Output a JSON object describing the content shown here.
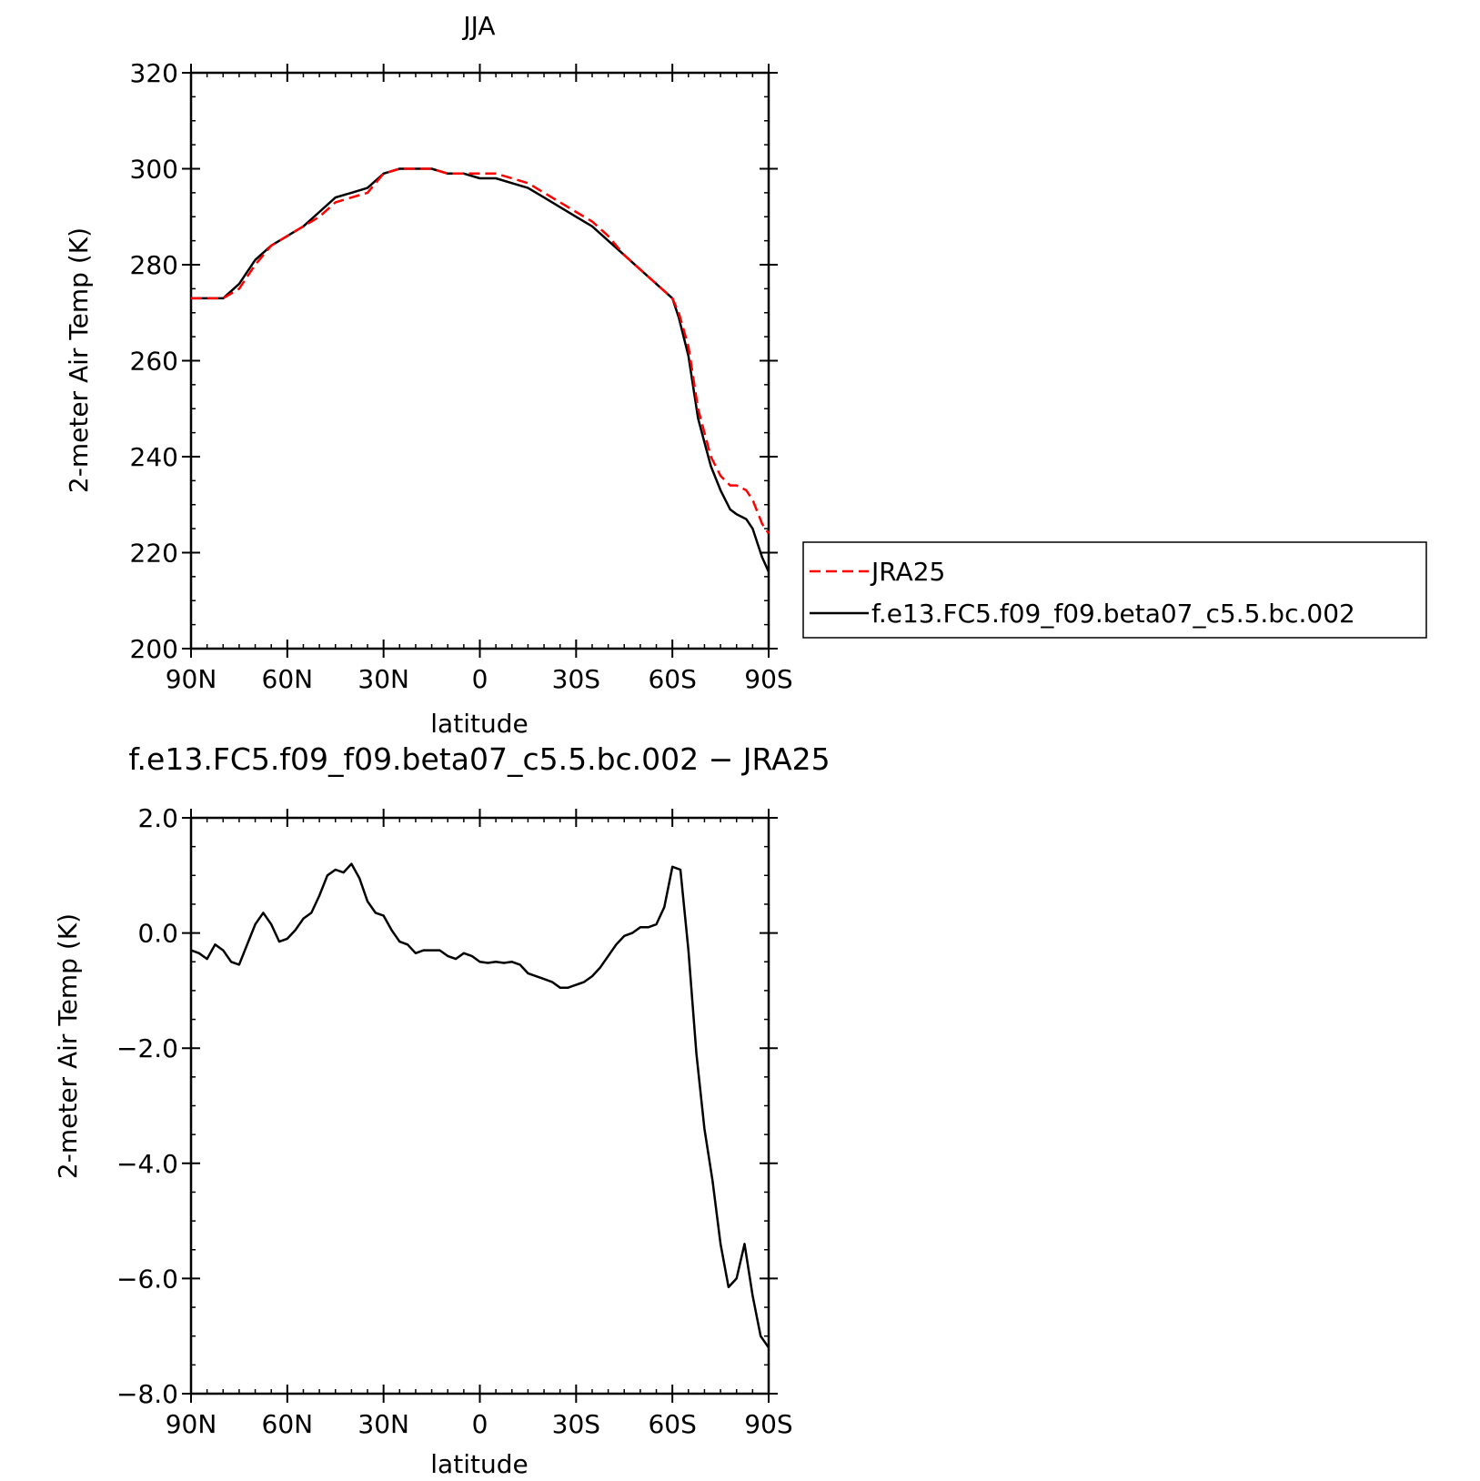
{
  "chart_data": [
    {
      "type": "line",
      "title": "JJA",
      "xlabel": "latitude",
      "ylabel": "2-meter Air Temp (K)",
      "xlim": [
        90,
        -90
      ],
      "ylim": [
        200,
        320
      ],
      "x_ticks": [
        {
          "value": 90,
          "label": "90N"
        },
        {
          "value": 60,
          "label": "60N"
        },
        {
          "value": 30,
          "label": "30N"
        },
        {
          "value": 0,
          "label": "0"
        },
        {
          "value": -30,
          "label": "30S"
        },
        {
          "value": -60,
          "label": "60S"
        },
        {
          "value": -90,
          "label": "90S"
        }
      ],
      "y_ticks": [
        {
          "value": 320,
          "label": "320"
        },
        {
          "value": 300,
          "label": "300"
        },
        {
          "value": 280,
          "label": "280"
        },
        {
          "value": 260,
          "label": "260"
        },
        {
          "value": 240,
          "label": "240"
        },
        {
          "value": 220,
          "label": "220"
        },
        {
          "value": 200,
          "label": "200"
        }
      ],
      "legend": "right",
      "series": [
        {
          "name": "JRA25",
          "color": "#ff0000",
          "style": "dashed",
          "x": [
            90,
            85,
            80,
            75,
            70,
            65,
            60,
            55,
            50,
            45,
            40,
            35,
            30,
            25,
            20,
            15,
            10,
            5,
            0,
            -5,
            -10,
            -15,
            -20,
            -25,
            -30,
            -35,
            -40,
            -45,
            -50,
            -55,
            -60,
            -62,
            -65,
            -68,
            -70,
            -72,
            -75,
            -78,
            -80,
            -83,
            -85,
            -88,
            -90
          ],
          "y": [
            273,
            273,
            273,
            275,
            280,
            284,
            286,
            288,
            290,
            293,
            294,
            295,
            299,
            300,
            300,
            300,
            299,
            299,
            299,
            299,
            298,
            297,
            295,
            293,
            291,
            289,
            286,
            282,
            279,
            276,
            273,
            270,
            263,
            250,
            245,
            240,
            236,
            234,
            234,
            233,
            231,
            226,
            224
          ]
        },
        {
          "name": "f.e13.FC5.f09_f09.beta07_c5.5.bc.002",
          "color": "#000000",
          "style": "solid",
          "x": [
            90,
            85,
            80,
            75,
            70,
            65,
            60,
            55,
            50,
            45,
            40,
            35,
            30,
            25,
            20,
            15,
            10,
            5,
            0,
            -5,
            -10,
            -15,
            -20,
            -25,
            -30,
            -35,
            -40,
            -45,
            -50,
            -55,
            -60,
            -62,
            -65,
            -68,
            -70,
            -72,
            -75,
            -78,
            -80,
            -83,
            -85,
            -88,
            -90
          ],
          "y": [
            273,
            273,
            273,
            276,
            281,
            284,
            286,
            288,
            291,
            294,
            295,
            296,
            299,
            300,
            300,
            300,
            299,
            299,
            298,
            298,
            297,
            296,
            294,
            292,
            290,
            288,
            285,
            282,
            279,
            276,
            273,
            269,
            261,
            248,
            243,
            238,
            233,
            229,
            228,
            227,
            225,
            219,
            216
          ]
        }
      ]
    },
    {
      "type": "line",
      "title": "f.e13.FC5.f09_f09.beta07_c5.5.bc.002 − JRA25",
      "xlabel": "latitude",
      "ylabel": "2-meter Air Temp (K)",
      "xlim": [
        90,
        -90
      ],
      "ylim": [
        -8,
        2
      ],
      "x_ticks": [
        {
          "value": 90,
          "label": "90N"
        },
        {
          "value": 60,
          "label": "60N"
        },
        {
          "value": 30,
          "label": "30N"
        },
        {
          "value": 0,
          "label": "0"
        },
        {
          "value": -30,
          "label": "30S"
        },
        {
          "value": -60,
          "label": "60S"
        },
        {
          "value": -90,
          "label": "90S"
        }
      ],
      "y_ticks": [
        {
          "value": 2,
          "label": "2.0"
        },
        {
          "value": 0,
          "label": "0.0"
        },
        {
          "value": -2,
          "label": "−2.0"
        },
        {
          "value": -4,
          "label": "−4.0"
        },
        {
          "value": -6,
          "label": "−6.0"
        },
        {
          "value": -8,
          "label": "−8.0"
        }
      ],
      "series": [
        {
          "color": "#000000",
          "style": "solid",
          "x": [
            90,
            87.5,
            85,
            82.5,
            80,
            77.5,
            75,
            72.5,
            70,
            67.5,
            65,
            62.5,
            60,
            57.5,
            55,
            52.5,
            50,
            47.5,
            45,
            42.5,
            40,
            37.5,
            35,
            32.5,
            30,
            27.5,
            25,
            22.5,
            20,
            17.5,
            15,
            12.5,
            10,
            7.5,
            5,
            2.5,
            0,
            -2.5,
            -5,
            -7.5,
            -10,
            -12.5,
            -15,
            -17.5,
            -20,
            -22.5,
            -25,
            -27.5,
            -30,
            -32.5,
            -35,
            -37.5,
            -40,
            -42.5,
            -45,
            -47.5,
            -50,
            -52.5,
            -55,
            -57.5,
            -60,
            -62.5,
            -65,
            -67.5,
            -70,
            -72.5,
            -75,
            -77.5,
            -80,
            -82.5,
            -85,
            -87.5,
            -90
          ],
          "y": [
            -0.3,
            -0.35,
            -0.45,
            -0.2,
            -0.3,
            -0.5,
            -0.55,
            -0.2,
            0.15,
            0.35,
            0.15,
            -0.15,
            -0.1,
            0.05,
            0.25,
            0.35,
            0.65,
            1.0,
            1.1,
            1.05,
            1.2,
            0.95,
            0.55,
            0.35,
            0.3,
            0.05,
            -0.15,
            -0.2,
            -0.35,
            -0.3,
            -0.3,
            -0.3,
            -0.4,
            -0.45,
            -0.35,
            -0.4,
            -0.5,
            -0.52,
            -0.5,
            -0.52,
            -0.5,
            -0.55,
            -0.7,
            -0.75,
            -0.8,
            -0.85,
            -0.95,
            -0.95,
            -0.9,
            -0.85,
            -0.75,
            -0.6,
            -0.4,
            -0.2,
            -0.05,
            0.0,
            0.1,
            0.1,
            0.15,
            0.45,
            1.15,
            1.1,
            -0.3,
            -2.1,
            -3.4,
            -4.3,
            -5.4,
            -6.15,
            -6.0,
            -5.4,
            -6.3,
            -7.0,
            -7.2
          ]
        }
      ]
    }
  ]
}
